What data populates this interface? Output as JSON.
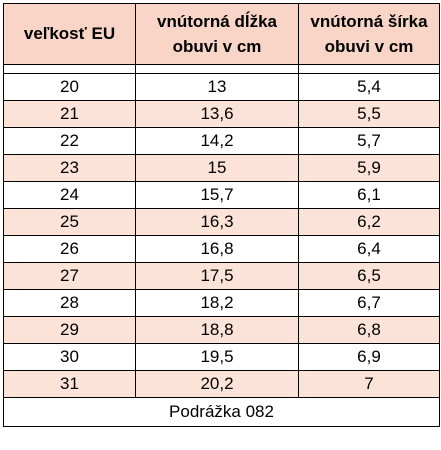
{
  "headers": {
    "size": "veľkosť EU",
    "length_line1": "vnútorná dĺžka",
    "length_line2": "obuvi v cm",
    "width_line1": "vnútorná šírka",
    "width_line2": "obuvi v cm"
  },
  "rows": [
    {
      "size": "20",
      "length": "13",
      "width": "5,4"
    },
    {
      "size": "21",
      "length": "13,6",
      "width": "5,5"
    },
    {
      "size": "22",
      "length": "14,2",
      "width": "5,7"
    },
    {
      "size": "23",
      "length": "15",
      "width": "5,9"
    },
    {
      "size": "24",
      "length": "15,7",
      "width": "6,1"
    },
    {
      "size": "25",
      "length": "16,3",
      "width": "6,2"
    },
    {
      "size": "26",
      "length": "16,8",
      "width": "6,4"
    },
    {
      "size": "27",
      "length": "17,5",
      "width": "6,5"
    },
    {
      "size": "28",
      "length": "18,2",
      "width": "6,7"
    },
    {
      "size": "29",
      "length": "18,8",
      "width": "6,8"
    },
    {
      "size": "30",
      "length": "19,5",
      "width": "6,9"
    },
    {
      "size": "31",
      "length": "20,2",
      "width": "7"
    }
  ],
  "footer": {
    "text": "Podrážka 082"
  },
  "colors": {
    "header_bg": "#f8d5c6",
    "stripe_bg": "#fbe3d8",
    "border": "#000000"
  }
}
